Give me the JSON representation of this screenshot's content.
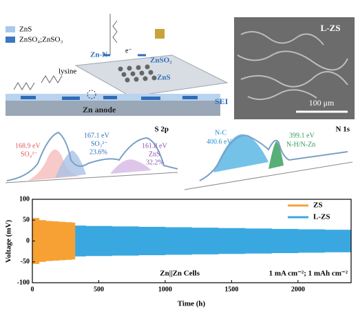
{
  "schematic": {
    "legend": [
      "ZnS",
      "ZnSO₄;ZnSO₃"
    ],
    "labels": {
      "lysine": "lysine",
      "zn_n": "Zn-N",
      "electron": "e⁻",
      "znso3": "ZnSO₃",
      "zns": "ZnS",
      "sei": "SEI",
      "anode": "Zn anode"
    }
  },
  "sem": {
    "label": "L-ZS",
    "scale": "100 μm"
  },
  "xps_s2p": {
    "title": "S 2p",
    "peaks": [
      {
        "energy": "168.9 eV",
        "species": "SO₄²⁻"
      },
      {
        "energy": "167.1 eV",
        "species": "SO₃²⁻",
        "share": "23.6%"
      },
      {
        "energy": "161.8 eV",
        "species": "ZnS",
        "share": "32.2%"
      }
    ]
  },
  "xps_n1s": {
    "title": "N 1s",
    "peaks": [
      {
        "species": "N-C",
        "energy": "400.6 eV"
      },
      {
        "energy": "399.1 eV",
        "species": "N-H/N-Zn"
      }
    ]
  },
  "chart_data": {
    "type": "band",
    "xlabel": "Time (h)",
    "ylabel": "Voltage (mV)",
    "annotations": [
      "Zn||Zn Cells",
      "1 mA cm⁻²; 1 mAh cm⁻²"
    ],
    "xlim": [
      0,
      2400
    ],
    "xticks": [
      0,
      500,
      1000,
      1500,
      2000
    ],
    "ylim": [
      -100,
      100
    ],
    "yticks": [
      -100,
      -50,
      0,
      50,
      100
    ],
    "legend": "upper right",
    "series": [
      {
        "name": "L-ZS",
        "color": "#3aa8e0",
        "x": [
          0,
          200,
          400,
          600,
          800,
          1000,
          1200,
          1400,
          1600,
          1800,
          2000,
          2200,
          2400
        ],
        "upper": [
          38,
          37,
          36,
          35,
          34,
          33,
          32,
          31,
          30,
          29,
          28,
          27,
          26
        ],
        "lower": [
          -38,
          -37,
          -36,
          -35,
          -34,
          -33,
          -32,
          -31,
          -30,
          -29,
          -28,
          -27,
          -26
        ]
      },
      {
        "name": "ZS",
        "color": "#f7a134",
        "x": [
          0,
          50,
          100,
          150,
          200,
          250,
          300,
          320
        ],
        "upper": [
          55,
          50,
          48,
          47,
          46,
          45,
          44,
          40
        ],
        "lower": [
          -55,
          -50,
          -48,
          -47,
          -46,
          -45,
          -44,
          -40
        ]
      }
    ]
  }
}
